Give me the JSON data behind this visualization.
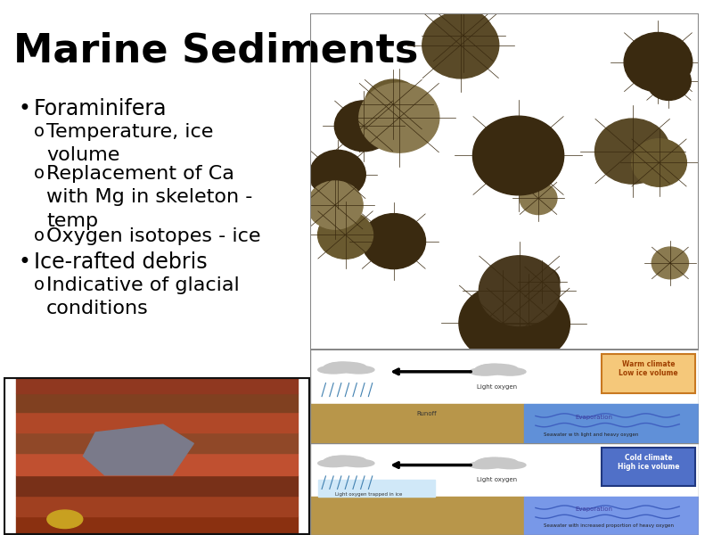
{
  "title": "Marine Sediments",
  "background_color": "#ffffff",
  "title_fontsize": 32,
  "bullet1": "Foraminifera",
  "sub1a": "Temperature, ice\nvolume",
  "sub1b": "Replacement of Ca\nwith Mg in skeleton -\ntemp",
  "sub1c": "Oxygen isotopes - ice",
  "bullet2": "Ice-rafted debris",
  "sub2a": "Indicative of glacial\nconditions",
  "text_color": "#000000",
  "bullet_fontsize": 17,
  "sub_fontsize": 16
}
